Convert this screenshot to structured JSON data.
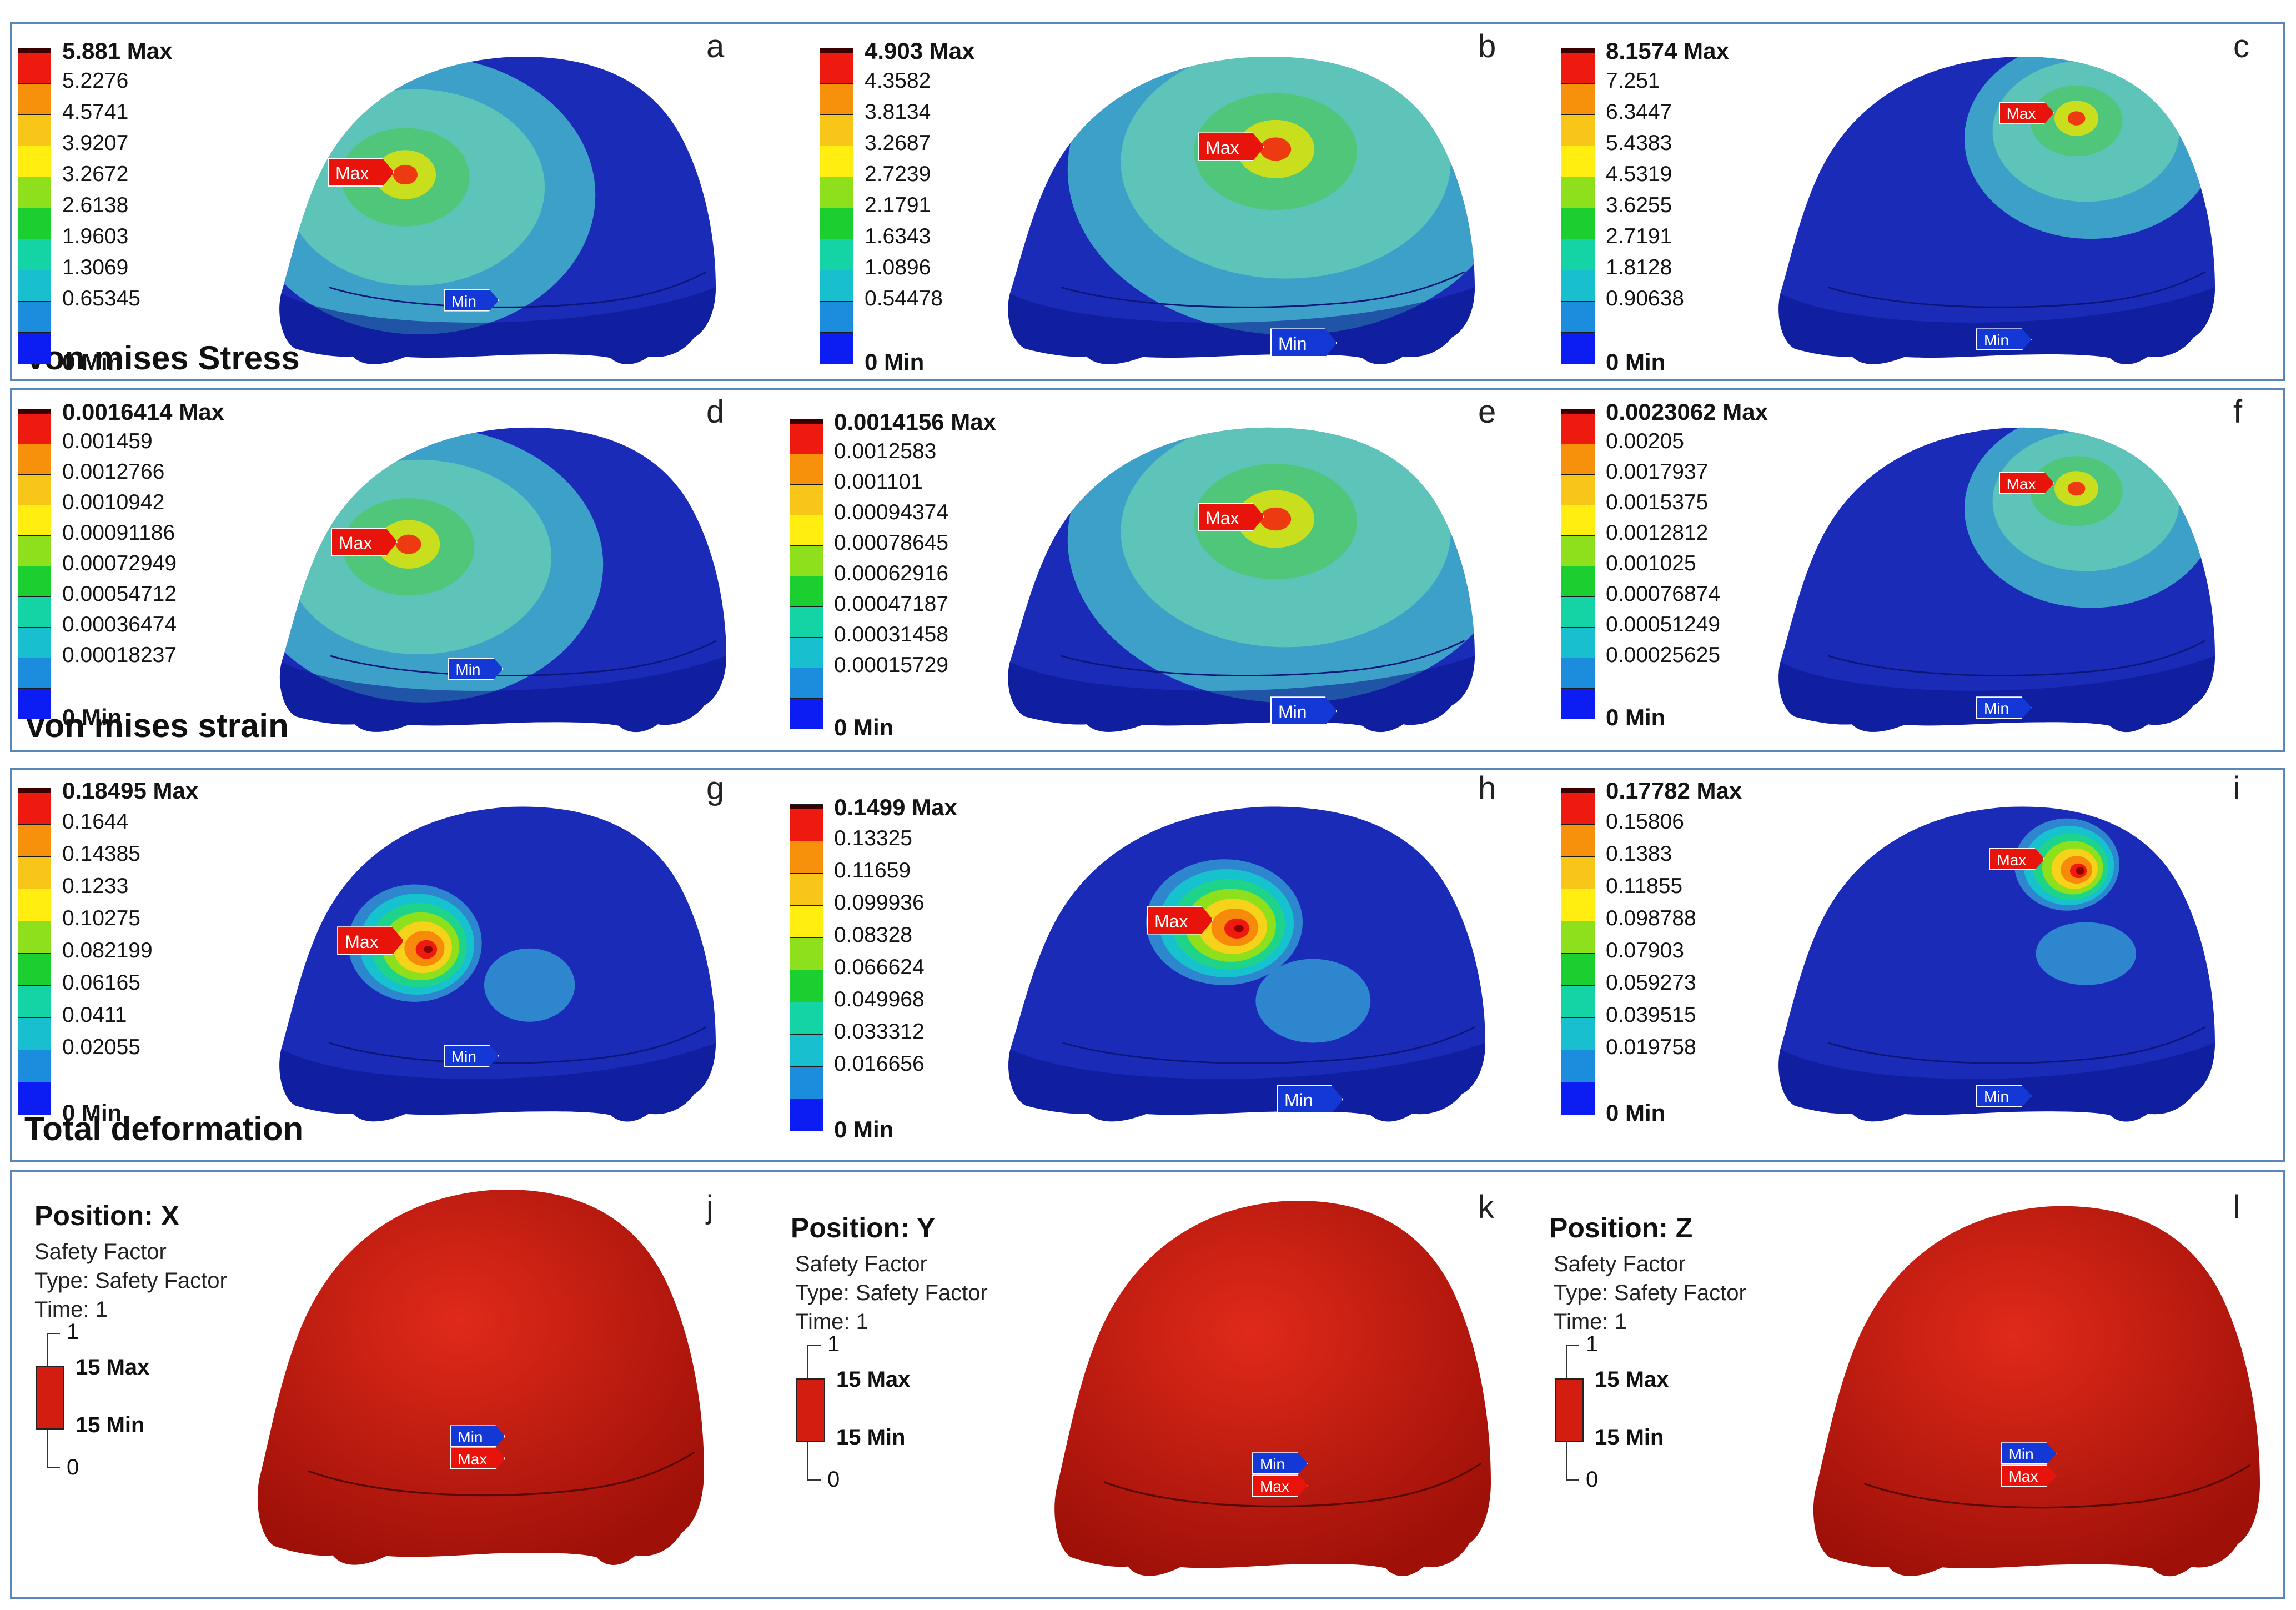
{
  "colors": {
    "scale": [
      "#0b1df2",
      "#1c8ddc",
      "#18c0cf",
      "#14d4a6",
      "#1ccf30",
      "#8fe01c",
      "#ffee10",
      "#f8c618",
      "#f7900a",
      "#ee1a10"
    ],
    "skull_blue": "#1a2bb8",
    "skull_red": "#d21d10",
    "frame": "#5b86b8"
  },
  "rows": [
    {
      "heading": "Von mises Stress",
      "panels": [
        {
          "letter": "a",
          "scale": [
            "5.881 Max",
            "5.2276",
            "4.5741",
            "3.9207",
            "3.2672",
            "2.6138",
            "1.9603",
            "1.3069",
            "0.65345",
            "0 Min"
          ],
          "tag_max": "Max",
          "tag_min": "Min",
          "contour": "stress"
        },
        {
          "letter": "b",
          "scale": [
            "4.903 Max",
            "4.3582",
            "3.8134",
            "3.2687",
            "2.7239",
            "2.1791",
            "1.6343",
            "1.0896",
            "0.54478",
            "0 Min"
          ],
          "tag_max": "Max",
          "tag_min": "Min",
          "contour": "stress"
        },
        {
          "letter": "c",
          "scale": [
            "8.1574 Max",
            "7.251",
            "6.3447",
            "5.4383",
            "4.5319",
            "3.6255",
            "2.7191",
            "1.8128",
            "0.90638",
            "0 Min"
          ],
          "tag_max": "Max",
          "tag_min": "Min",
          "contour": "stress"
        }
      ]
    },
    {
      "heading": "Von mises strain",
      "panels": [
        {
          "letter": "d",
          "scale": [
            "0.0016414 Max",
            "0.001459",
            "0.0012766",
            "0.0010942",
            "0.00091186",
            "0.00072949",
            "0.00054712",
            "0.00036474",
            "0.00018237",
            "0 Min"
          ],
          "tag_max": "Max",
          "tag_min": "Min",
          "contour": "stress"
        },
        {
          "letter": "e",
          "scale": [
            "0.0014156 Max",
            "0.0012583",
            "0.001101",
            "0.00094374",
            "0.00078645",
            "0.00062916",
            "0.00047187",
            "0.00031458",
            "0.00015729",
            "0 Min"
          ],
          "tag_max": "Max",
          "tag_min": "Min",
          "contour": "stress"
        },
        {
          "letter": "f",
          "scale": [
            "0.0023062 Max",
            "0.00205",
            "0.0017937",
            "0.0015375",
            "0.0012812",
            "0.001025",
            "0.00076874",
            "0.00051249",
            "0.00025625",
            "0 Min"
          ],
          "tag_max": "Max",
          "tag_min": "Min",
          "contour": "stress"
        }
      ]
    },
    {
      "heading": "Total deformation",
      "panels": [
        {
          "letter": "g",
          "scale": [
            "0.18495 Max",
            "0.1644",
            "0.14385",
            "0.1233",
            "0.10275",
            "0.082199",
            "0.06165",
            "0.0411",
            "0.02055",
            "0 Min"
          ],
          "tag_max": "Max",
          "tag_min": "Min",
          "contour": "deform"
        },
        {
          "letter": "h",
          "scale": [
            "0.1499 Max",
            "0.13325",
            "0.11659",
            "0.099936",
            "0.08328",
            "0.066624",
            "0.049968",
            "0.033312",
            "0.016656",
            "0 Min"
          ],
          "tag_max": "Max",
          "tag_min": "Min",
          "contour": "deform"
        },
        {
          "letter": "i",
          "scale": [
            "0.17782 Max",
            "0.15806",
            "0.1383",
            "0.11855",
            "0.098788",
            "0.07903",
            "0.059273",
            "0.039515",
            "0.019758",
            "0 Min"
          ],
          "tag_max": "Max",
          "tag_min": "Min",
          "contour": "deform"
        }
      ]
    }
  ],
  "safety": [
    {
      "letter": "j",
      "position": "Position: X",
      "title": "Safety Factor",
      "type": "Type: Safety Factor",
      "time": "Time: 1",
      "tick_top": "1",
      "max": "15 Max",
      "min": "15 Min",
      "tick_bottom": "0",
      "tag_min": "Min",
      "tag_max": "Max"
    },
    {
      "letter": "k",
      "position": "Position: Y",
      "title": "Safety Factor",
      "type": "Type: Safety Factor",
      "time": "Time: 1",
      "tick_top": "1",
      "max": "15 Max",
      "min": "15 Min",
      "tick_bottom": "0",
      "tag_min": "Min",
      "tag_max": "Max"
    },
    {
      "letter": "l",
      "position": "Position: Z",
      "title": "Safety Factor",
      "type": "Type: Safety Factor",
      "time": "Time: 1",
      "tick_top": "1",
      "max": "15 Max",
      "min": "15 Min",
      "tick_bottom": "0",
      "tag_min": "Min",
      "tag_max": "Max"
    }
  ]
}
